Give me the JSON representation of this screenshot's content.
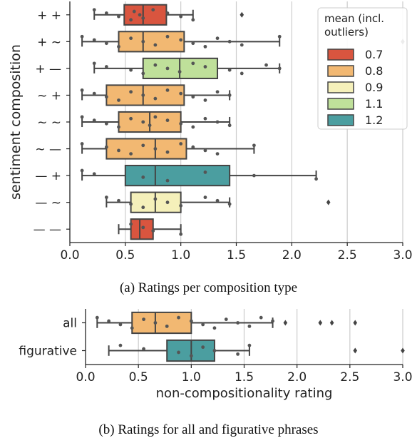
{
  "chart_data": [
    {
      "type": "box",
      "orientation": "horizontal",
      "caption": "(a) Ratings per composition type",
      "ylabel": "sentiment composition",
      "xlim": [
        0,
        3.0
      ],
      "xticks": [
        "0.0",
        "0.5",
        "1.0",
        "1.5",
        "2.0",
        "2.5",
        "3.0"
      ],
      "grid": "vertical",
      "legend": {
        "title_lines": [
          "mean (incl.",
          "outliers)"
        ],
        "placement": "top-right",
        "entries": [
          {
            "label": "0.7",
            "color": "#d9553f"
          },
          {
            "label": "0.8",
            "color": "#f2b872"
          },
          {
            "label": "0.9",
            "color": "#f5f0ba"
          },
          {
            "label": "1.1",
            "color": "#bfe09a"
          },
          {
            "label": "1.2",
            "color": "#4b9ea0"
          }
        ]
      },
      "rows": [
        {
          "label": "+ +",
          "whisker_low": 0.22,
          "q1": 0.49,
          "median": 0.66,
          "q3": 0.87,
          "whisker_high": 1.11,
          "fliers": [
            1.55
          ],
          "mean_color": "#d9553f",
          "points": [
            0.22,
            0.33,
            0.44,
            0.55,
            0.58,
            0.63,
            0.66,
            0.75,
            0.88,
            1.0,
            1.11
          ]
        },
        {
          "label": "+ ~",
          "whisker_low": 0.11,
          "q1": 0.44,
          "median": 0.66,
          "q3": 1.03,
          "whisker_high": 1.89,
          "fliers": [
            3.0
          ],
          "mean_color": "#f2b872",
          "points": [
            0.11,
            0.22,
            0.33,
            0.44,
            0.55,
            0.66,
            0.77,
            0.88,
            1.0,
            1.11,
            1.22,
            1.33,
            1.44,
            1.55,
            1.89
          ]
        },
        {
          "label": "+ —",
          "whisker_low": 0.22,
          "q1": 0.66,
          "median": 0.99,
          "q3": 1.33,
          "whisker_high": 1.89,
          "fliers": [],
          "mean_color": "#bfe09a",
          "points": [
            0.22,
            0.33,
            0.55,
            0.66,
            0.77,
            0.88,
            0.99,
            1.11,
            1.22,
            1.44,
            1.55,
            1.77,
            1.89
          ]
        },
        {
          "label": "~ +",
          "whisker_low": 0.11,
          "q1": 0.33,
          "median": 0.66,
          "q3": 1.03,
          "whisker_high": 1.44,
          "fliers": [],
          "mean_color": "#f2b872",
          "points": [
            0.11,
            0.22,
            0.33,
            0.44,
            0.55,
            0.66,
            0.77,
            0.88,
            1.0,
            1.11,
            1.22,
            1.33,
            1.44
          ]
        },
        {
          "label": "~ ~",
          "whisker_low": 0.11,
          "q1": 0.44,
          "median": 0.72,
          "q3": 1.0,
          "whisker_high": 1.44,
          "fliers": [],
          "mean_color": "#f2b872",
          "points": [
            0.11,
            0.22,
            0.33,
            0.44,
            0.55,
            0.66,
            0.72,
            0.77,
            0.88,
            1.0,
            1.11,
            1.22,
            1.33,
            1.44
          ]
        },
        {
          "label": "~ —",
          "whisker_low": 0.11,
          "q1": 0.33,
          "median": 0.77,
          "q3": 1.05,
          "whisker_high": 1.66,
          "fliers": [],
          "mean_color": "#f2b872",
          "points": [
            0.11,
            0.33,
            0.44,
            0.55,
            0.66,
            0.77,
            0.88,
            1.0,
            1.11,
            1.22,
            1.33,
            1.66
          ]
        },
        {
          "label": "— +",
          "whisker_low": 0.11,
          "q1": 0.5,
          "median": 0.77,
          "q3": 1.44,
          "whisker_high": 2.22,
          "fliers": [],
          "mean_color": "#4b9ea0",
          "points": [
            0.11,
            0.22,
            0.66,
            0.88,
            1.22,
            1.66,
            2.22
          ]
        },
        {
          "label": "— ~",
          "whisker_low": 0.33,
          "q1": 0.55,
          "median": 0.77,
          "q3": 1.0,
          "whisker_high": 1.44,
          "fliers": [
            2.33
          ],
          "mean_color": "#f5f0ba",
          "points": [
            0.33,
            0.44,
            0.55,
            0.66,
            0.77,
            0.88,
            1.0,
            1.22,
            1.33,
            1.44
          ]
        },
        {
          "label": "— —",
          "whisker_low": 0.44,
          "q1": 0.55,
          "median": 0.63,
          "q3": 0.75,
          "whisker_high": 1.0,
          "fliers": [],
          "mean_color": "#d9553f",
          "points": [
            0.55,
            0.66,
            0.75,
            1.0
          ]
        }
      ]
    },
    {
      "type": "box",
      "orientation": "horizontal",
      "caption": "(b) Ratings for all and figurative phrases",
      "xlabel": "non-compositionality rating",
      "xlim": [
        0,
        3.0
      ],
      "xticks": [
        "0.0",
        "0.5",
        "1.0",
        "1.5",
        "2.0",
        "2.5",
        "3.0"
      ],
      "grid": "vertical",
      "rows": [
        {
          "label": "all",
          "whisker_low": 0.11,
          "q1": 0.44,
          "median": 0.66,
          "q3": 1.0,
          "whisker_high": 1.77,
          "fliers": [
            1.89,
            2.22,
            2.33,
            2.55
          ],
          "mean_color": "#f2b872",
          "points": [
            0.11,
            0.22,
            0.33,
            0.44,
            0.55,
            0.66,
            0.77,
            0.88,
            1.0,
            1.11,
            1.22,
            1.33,
            1.44,
            1.55,
            1.66,
            1.77
          ]
        },
        {
          "label": "figurative",
          "whisker_low": 0.22,
          "q1": 0.77,
          "median": 1.0,
          "q3": 1.22,
          "whisker_high": 1.55,
          "fliers": [
            2.55,
            3.0
          ],
          "mean_color": "#4b9ea0",
          "points": [
            0.33,
            0.55,
            0.88,
            1.0,
            1.11,
            1.22,
            1.44,
            1.55
          ]
        }
      ]
    }
  ]
}
